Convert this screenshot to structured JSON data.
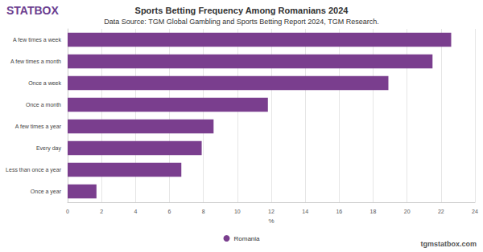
{
  "chart_data": {
    "type": "bar",
    "orientation": "horizontal",
    "title": "Sports Betting Frequency Among Romanians 2024",
    "subtitle": "Data Source: TGM Global Gambling and Sports Betting Report 2024, TGM Research.",
    "annotations": [
      "STATBOX",
      "tgmstatbox.com"
    ],
    "x_label": "%",
    "categories": [
      "A few times a week",
      "A few times a month",
      "Once a week",
      "Once a month",
      "A few times a year",
      "Every day",
      "Less than once a year",
      "Once a year"
    ],
    "series": [
      {
        "name": "Romania",
        "color": "#7a3e8e",
        "values": [
          22.6,
          21.5,
          18.9,
          11.8,
          8.6,
          7.9,
          6.7,
          1.7
        ]
      }
    ],
    "xlim": [
      0,
      24
    ],
    "xticks": [
      0,
      2,
      4,
      6,
      8,
      10,
      12,
      14,
      16,
      18,
      20,
      22,
      24
    ],
    "grid": true,
    "legend": "bottom"
  }
}
